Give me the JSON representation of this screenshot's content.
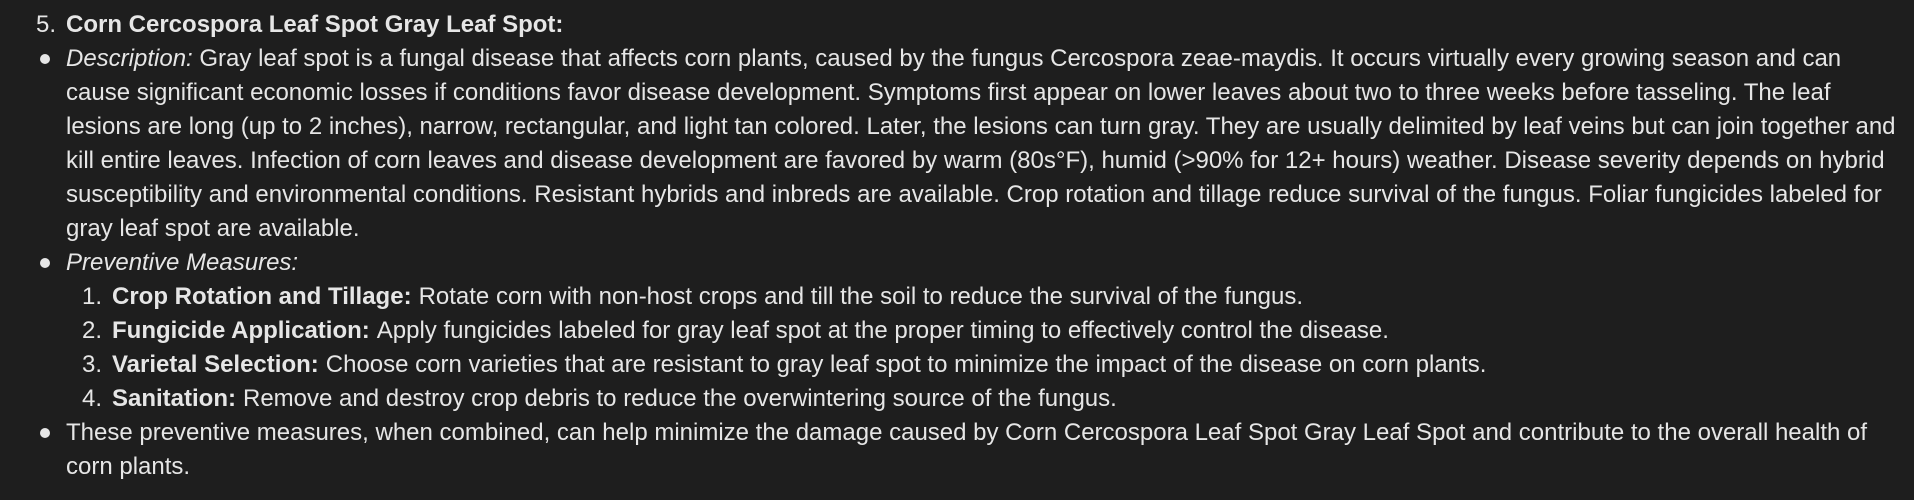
{
  "heading": {
    "number": "5.",
    "title": "Corn Cercospora Leaf Spot Gray Leaf Spot:"
  },
  "description": {
    "label": "Description:",
    "text": "Gray leaf spot is a fungal disease that affects corn plants, caused by the fungus Cercospora zeae-maydis. It occurs virtually every growing season and can cause significant economic losses if conditions favor disease development. Symptoms first appear on lower leaves about two to three weeks before tasseling. The leaf lesions are long (up to 2 inches), narrow, rectangular, and light tan colored. Later, the lesions can turn gray. They are usually delimited by leaf veins but can join together and kill entire leaves. Infection of corn leaves and disease development are favored by warm (80s°F), humid (>90% for 12+ hours) weather. Disease severity depends on hybrid susceptibility and environmental conditions. Resistant hybrids and inbreds are available. Crop rotation and tillage reduce survival of the fungus. Foliar fungicides labeled for gray leaf spot are available."
  },
  "preventive": {
    "label": "Preventive Measures:",
    "items": [
      {
        "number": "1.",
        "title": "Crop Rotation and Tillage:",
        "text": "Rotate corn with non-host crops and till the soil to reduce the survival of the fungus."
      },
      {
        "number": "2.",
        "title": "Fungicide Application:",
        "text": "Apply fungicides labeled for gray leaf spot at the proper timing to effectively control the disease."
      },
      {
        "number": "3.",
        "title": "Varietal Selection:",
        "text": "Choose corn varieties that are resistant to gray leaf spot to minimize the impact of the disease on corn plants."
      },
      {
        "number": "4.",
        "title": "Sanitation:",
        "text": "Remove and destroy crop debris to reduce the overwintering source of the fungus."
      }
    ]
  },
  "summary": {
    "text": "These preventive measures, when combined, can help minimize the damage caused by Corn Cercospora Leaf Spot Gray Leaf Spot and contribute to the overall health of corn plants."
  }
}
